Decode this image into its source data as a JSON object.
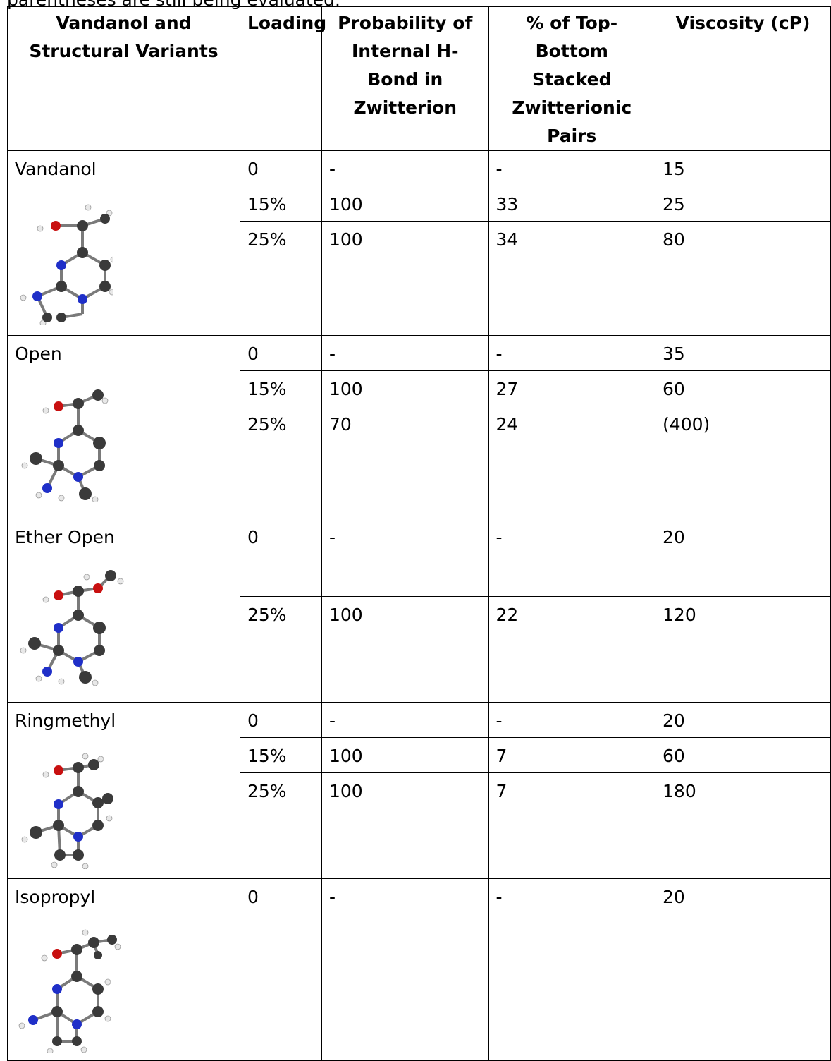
{
  "caption_fragment": "parentheses are still being evaluated.",
  "headers": {
    "variant": "Vandanol and Structural Variants",
    "loading": "Loading",
    "probability": "Probability of Internal H-Bond in Zwitterion",
    "stacked": "% of Top-Bottom Stacked Zwitterionic Pairs",
    "viscosity": "Viscosity (cP)"
  },
  "groups": [
    {
      "name": "Vandanol",
      "molecule_icon": "vandanol-structure-icon",
      "rows": [
        {
          "loading": "0",
          "probability": "-",
          "stacked": "-",
          "viscosity": "15"
        },
        {
          "loading": "15%",
          "probability": "100",
          "stacked": "33",
          "viscosity": "25"
        },
        {
          "loading": "25%",
          "probability": "100",
          "stacked": "34",
          "viscosity": "80"
        }
      ]
    },
    {
      "name": "Open",
      "molecule_icon": "open-structure-icon",
      "rows": [
        {
          "loading": "0",
          "probability": "-",
          "stacked": "-",
          "viscosity": "35"
        },
        {
          "loading": "15%",
          "probability": "100",
          "stacked": "27",
          "viscosity": "60"
        },
        {
          "loading": "25%",
          "probability": "70",
          "stacked": "24",
          "viscosity": "(400)"
        }
      ]
    },
    {
      "name": "Ether Open",
      "molecule_icon": "ether-open-structure-icon",
      "rows": [
        {
          "loading": "0",
          "probability": "-",
          "stacked": "-",
          "viscosity": "20"
        },
        {
          "loading": "25%",
          "probability": "100",
          "stacked": "22",
          "viscosity": "120"
        }
      ]
    },
    {
      "name": "Ringmethyl",
      "molecule_icon": "ringmethyl-structure-icon",
      "rows": [
        {
          "loading": "0",
          "probability": "-",
          "stacked": "-",
          "viscosity": "20"
        },
        {
          "loading": "15%",
          "probability": "100",
          "stacked": "7",
          "viscosity": "60"
        },
        {
          "loading": "25%",
          "probability": "100",
          "stacked": "7",
          "viscosity": "180"
        }
      ]
    },
    {
      "name": "Isopropyl",
      "molecule_icon": "isopropyl-structure-icon",
      "rows": [
        {
          "loading": "0",
          "probability": "-",
          "stacked": "-",
          "viscosity": "20"
        }
      ]
    }
  ],
  "atom_colors": {
    "carbon": "#3a3a3a",
    "nitrogen": "#1f2fc8",
    "oxygen": "#c81010",
    "hydrogen": "#e8e8e8"
  }
}
